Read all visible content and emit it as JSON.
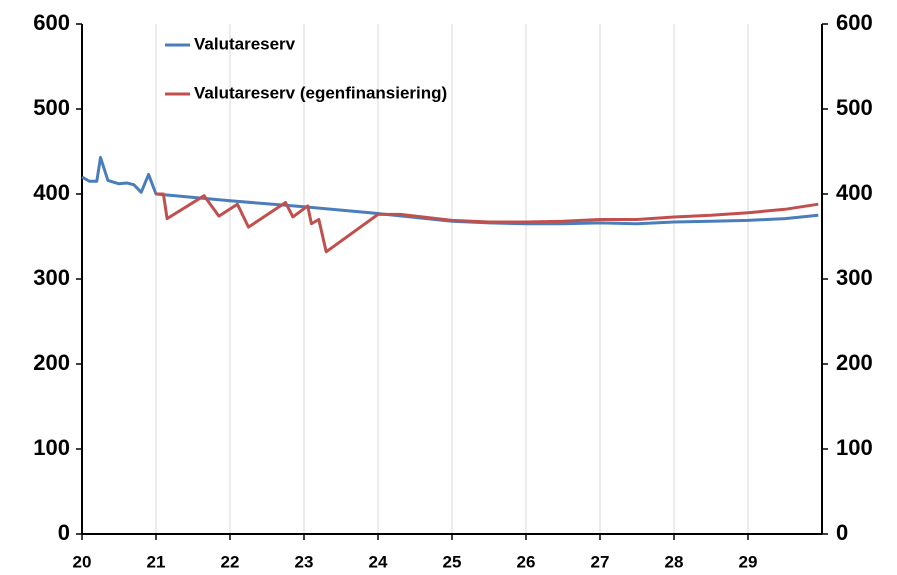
{
  "chart_data": {
    "type": "line",
    "xlim": [
      20,
      30
    ],
    "xticks": [
      20,
      21,
      22,
      23,
      24,
      25,
      26,
      27,
      28,
      29
    ],
    "ylim": [
      0,
      600
    ],
    "yticks": [
      0,
      100,
      200,
      300,
      400,
      500,
      600
    ],
    "y2lim": [
      0,
      600
    ],
    "y2ticks": [
      0,
      100,
      200,
      300,
      400,
      500,
      600
    ],
    "grid": true,
    "legend": "top-left",
    "series": [
      {
        "name": "Valutareserv",
        "color": "#4a7ebb",
        "x": [
          20,
          20.1,
          20.2,
          20.25,
          20.35,
          20.5,
          20.6,
          20.7,
          20.8,
          20.9,
          21.0,
          22.0,
          23.0,
          24.0,
          25.0,
          25.5,
          26.0,
          26.5,
          27.0,
          27.5,
          28.0,
          28.5,
          29.0,
          29.5,
          29.95
        ],
        "values": [
          420,
          415,
          415,
          443,
          416,
          412,
          413,
          411,
          402,
          423,
          400,
          392,
          385,
          377,
          368,
          366,
          365,
          365,
          366,
          365,
          367,
          368,
          369,
          371,
          375
        ]
      },
      {
        "name": "Valutareserv (egenfinansiering)",
        "color": "#c0504d",
        "x": [
          21.0,
          21.1,
          21.15,
          21.65,
          21.85,
          22.1,
          22.25,
          22.75,
          22.85,
          23.05,
          23.1,
          23.2,
          23.3,
          24.0,
          24.3,
          25.0,
          25.5,
          26.0,
          26.5,
          27.0,
          27.5,
          28.0,
          28.5,
          29.0,
          29.5,
          29.95
        ],
        "values": [
          400,
          400,
          371,
          398,
          374,
          388,
          361,
          390,
          373,
          386,
          365,
          370,
          332,
          376,
          376,
          369,
          367,
          367,
          368,
          370,
          370,
          373,
          375,
          378,
          382,
          388
        ]
      }
    ]
  }
}
